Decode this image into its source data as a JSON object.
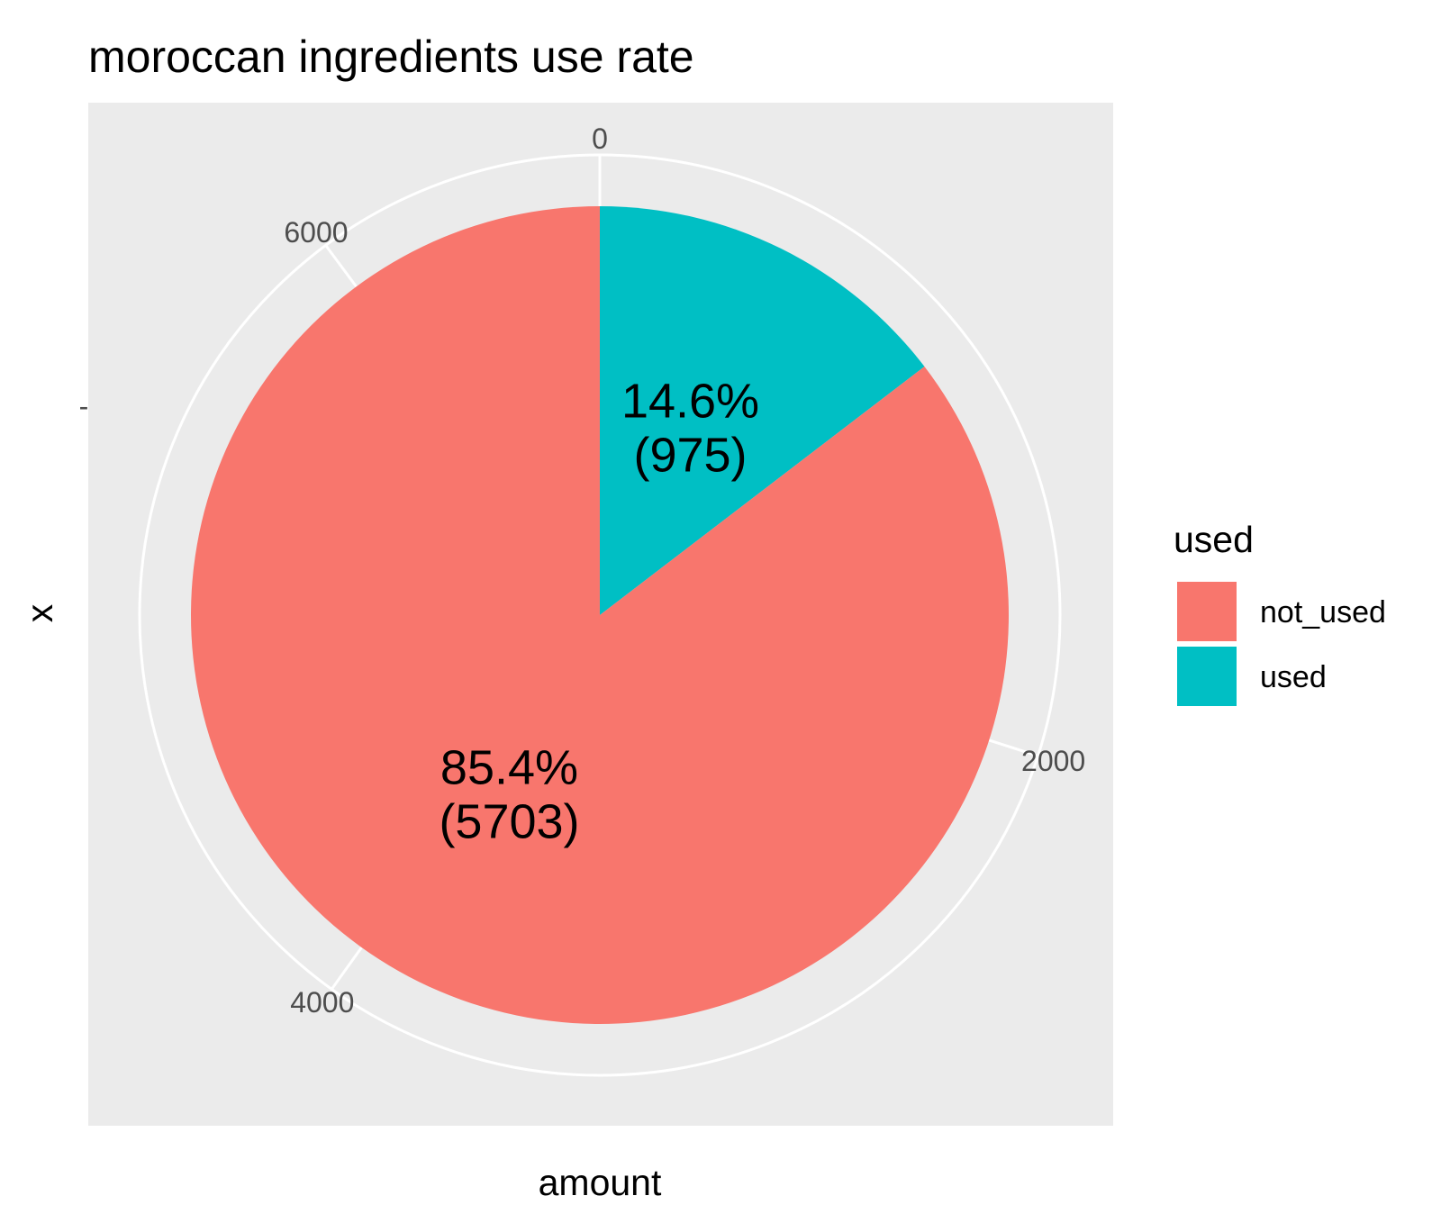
{
  "chart_data": {
    "type": "pie",
    "title": "moroccan ingredients use rate",
    "xlabel": "amount",
    "ylabel": "x",
    "y_tick_label": "-",
    "radial_ticks": [
      0,
      2000,
      4000,
      6000
    ],
    "radial_tick_labels": [
      "0",
      "2000",
      "4000",
      "6000"
    ],
    "legend": {
      "title": "used",
      "position": "right"
    },
    "slices": [
      {
        "name": "used",
        "value": 975,
        "percent": 14.6,
        "label_line1": "14.6%",
        "label_line2": "(975)",
        "color": "#00BFC4"
      },
      {
        "name": "not_used",
        "value": 5703,
        "percent": 85.4,
        "label_line1": "85.4%",
        "label_line2": "(5703)",
        "color": "#F8766D"
      }
    ],
    "legend_order": [
      "not_used",
      "used"
    ],
    "panel_background": "#EBEBEB",
    "grid_color": "#FFFFFF",
    "grid": true
  }
}
